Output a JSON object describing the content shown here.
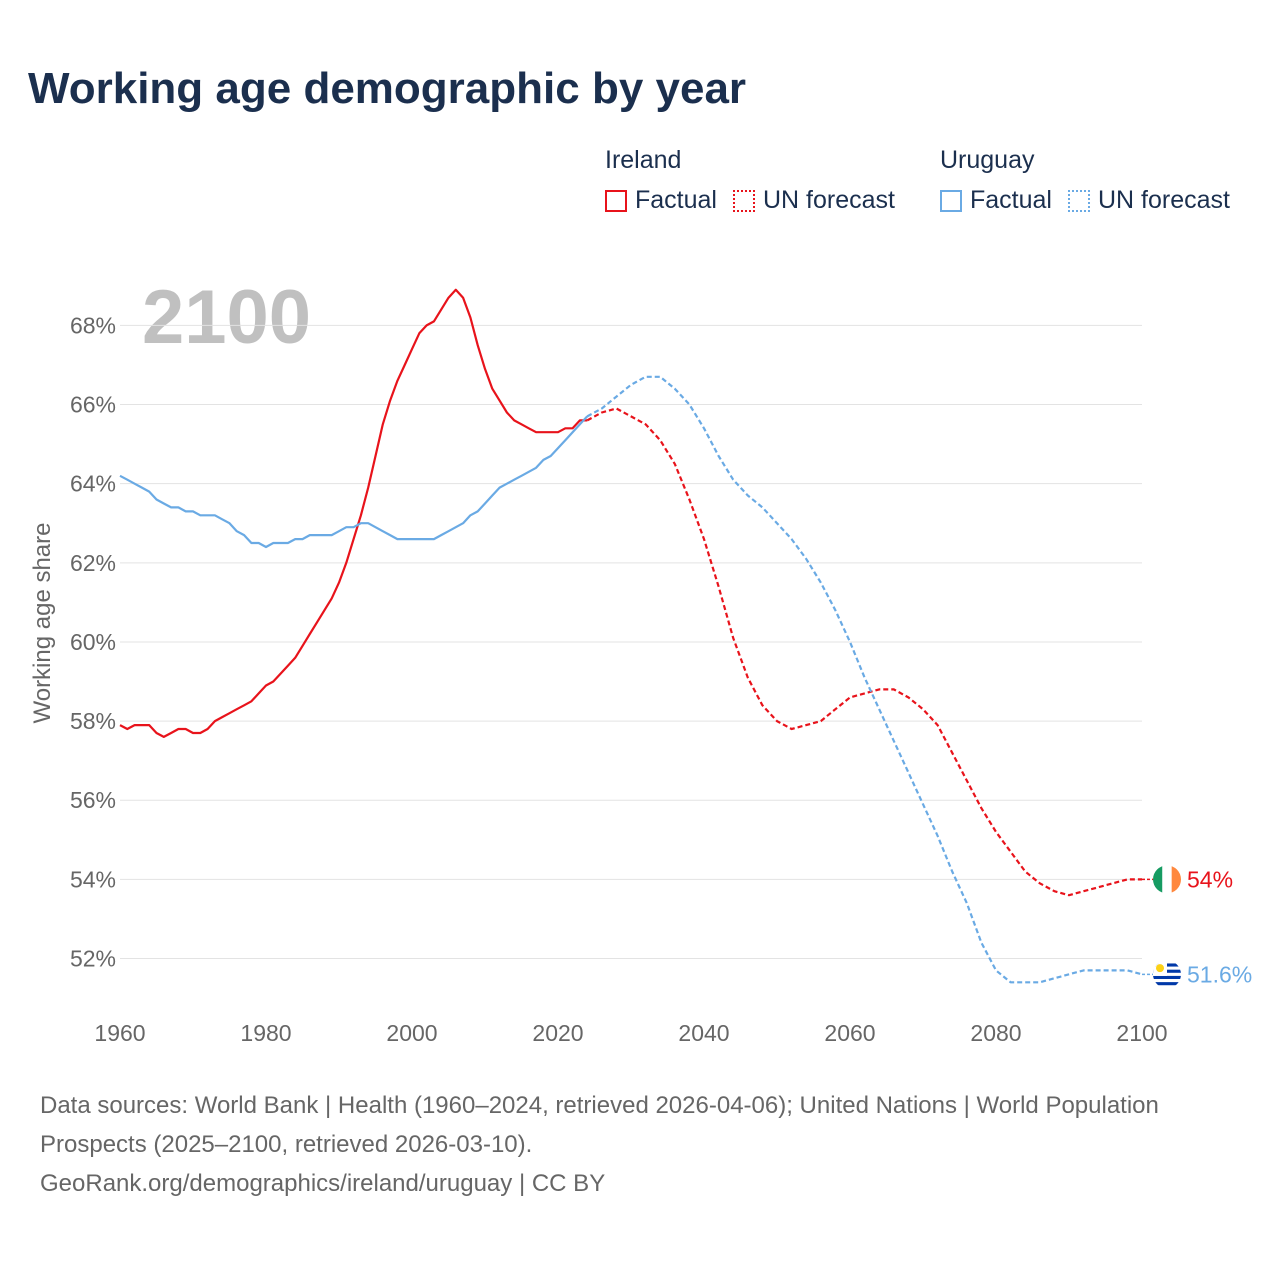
{
  "title": "Working age demographic by year",
  "legend": {
    "groups": [
      {
        "name": "Ireland",
        "factual_label": "Factual",
        "forecast_label": "UN forecast",
        "color": "#e8131b"
      },
      {
        "name": "Uruguay",
        "factual_label": "Factual",
        "forecast_label": "UN forecast",
        "color": "#6aaae4"
      }
    ]
  },
  "chart_data": {
    "type": "line",
    "title": "Working age demographic by year",
    "xlabel": "",
    "ylabel": "Working age share",
    "xlim": [
      1960,
      2100
    ],
    "ylim": [
      50.8,
      69.4
    ],
    "year_label": "2100",
    "x_ticks": [
      1960,
      1980,
      2000,
      2020,
      2040,
      2060,
      2080,
      2100
    ],
    "y_ticks": [
      52,
      54,
      56,
      58,
      60,
      62,
      64,
      66,
      68
    ],
    "y_tick_labels": [
      "52%",
      "54%",
      "56%",
      "58%",
      "60%",
      "62%",
      "64%",
      "66%",
      "68%"
    ],
    "grid": true,
    "factual_end_year": 2024,
    "series": [
      {
        "name": "Ireland",
        "color": "#e8131b",
        "end_label": "54%",
        "flag": "ireland-flag",
        "x": [
          1960,
          1961,
          1962,
          1963,
          1964,
          1965,
          1966,
          1967,
          1968,
          1969,
          1970,
          1971,
          1972,
          1973,
          1974,
          1975,
          1976,
          1977,
          1978,
          1979,
          1980,
          1981,
          1982,
          1983,
          1984,
          1985,
          1986,
          1987,
          1988,
          1989,
          1990,
          1991,
          1992,
          1993,
          1994,
          1995,
          1996,
          1997,
          1998,
          1999,
          2000,
          2001,
          2002,
          2003,
          2004,
          2005,
          2006,
          2007,
          2008,
          2009,
          2010,
          2011,
          2012,
          2013,
          2014,
          2015,
          2016,
          2017,
          2018,
          2019,
          2020,
          2021,
          2022,
          2023,
          2024,
          2026,
          2028,
          2030,
          2032,
          2034,
          2036,
          2038,
          2040,
          2042,
          2044,
          2046,
          2048,
          2050,
          2052,
          2054,
          2056,
          2058,
          2060,
          2062,
          2064,
          2066,
          2068,
          2070,
          2072,
          2074,
          2076,
          2078,
          2080,
          2082,
          2084,
          2086,
          2088,
          2090,
          2092,
          2094,
          2096,
          2098,
          2100
        ],
        "values": [
          57.9,
          57.8,
          57.9,
          57.9,
          57.9,
          57.7,
          57.6,
          57.7,
          57.8,
          57.8,
          57.7,
          57.7,
          57.8,
          58.0,
          58.1,
          58.2,
          58.3,
          58.4,
          58.5,
          58.7,
          58.9,
          59.0,
          59.2,
          59.4,
          59.6,
          59.9,
          60.2,
          60.5,
          60.8,
          61.1,
          61.5,
          62.0,
          62.6,
          63.2,
          63.9,
          64.7,
          65.5,
          66.1,
          66.6,
          67.0,
          67.4,
          67.8,
          68.0,
          68.1,
          68.4,
          68.7,
          68.9,
          68.7,
          68.2,
          67.5,
          66.9,
          66.4,
          66.1,
          65.8,
          65.6,
          65.5,
          65.4,
          65.3,
          65.3,
          65.3,
          65.3,
          65.4,
          65.4,
          65.6,
          65.6,
          65.8,
          65.9,
          65.7,
          65.5,
          65.1,
          64.5,
          63.6,
          62.6,
          61.4,
          60.1,
          59.1,
          58.4,
          58.0,
          57.8,
          57.9,
          58.0,
          58.3,
          58.6,
          58.7,
          58.8,
          58.8,
          58.6,
          58.3,
          57.9,
          57.2,
          56.5,
          55.8,
          55.2,
          54.7,
          54.2,
          53.9,
          53.7,
          53.6,
          53.7,
          53.8,
          53.9,
          54.0,
          54.0
        ]
      },
      {
        "name": "Uruguay",
        "color": "#6aaae4",
        "end_label": "51.6%",
        "flag": "uruguay-flag",
        "x": [
          1960,
          1961,
          1962,
          1963,
          1964,
          1965,
          1966,
          1967,
          1968,
          1969,
          1970,
          1971,
          1972,
          1973,
          1974,
          1975,
          1976,
          1977,
          1978,
          1979,
          1980,
          1981,
          1982,
          1983,
          1984,
          1985,
          1986,
          1987,
          1988,
          1989,
          1990,
          1991,
          1992,
          1993,
          1994,
          1995,
          1996,
          1997,
          1998,
          1999,
          2000,
          2001,
          2002,
          2003,
          2004,
          2005,
          2006,
          2007,
          2008,
          2009,
          2010,
          2011,
          2012,
          2013,
          2014,
          2015,
          2016,
          2017,
          2018,
          2019,
          2020,
          2021,
          2022,
          2023,
          2024,
          2026,
          2028,
          2030,
          2032,
          2034,
          2036,
          2038,
          2040,
          2042,
          2044,
          2046,
          2048,
          2050,
          2052,
          2054,
          2056,
          2058,
          2060,
          2062,
          2064,
          2066,
          2068,
          2070,
          2072,
          2074,
          2076,
          2078,
          2080,
          2082,
          2084,
          2086,
          2088,
          2090,
          2092,
          2094,
          2096,
          2098,
          2100
        ],
        "values": [
          64.2,
          64.1,
          64.0,
          63.9,
          63.8,
          63.6,
          63.5,
          63.4,
          63.4,
          63.3,
          63.3,
          63.2,
          63.2,
          63.2,
          63.1,
          63.0,
          62.8,
          62.7,
          62.5,
          62.5,
          62.4,
          62.5,
          62.5,
          62.5,
          62.6,
          62.6,
          62.7,
          62.7,
          62.7,
          62.7,
          62.8,
          62.9,
          62.9,
          63.0,
          63.0,
          62.9,
          62.8,
          62.7,
          62.6,
          62.6,
          62.6,
          62.6,
          62.6,
          62.6,
          62.7,
          62.8,
          62.9,
          63.0,
          63.2,
          63.3,
          63.5,
          63.7,
          63.9,
          64.0,
          64.1,
          64.2,
          64.3,
          64.4,
          64.6,
          64.7,
          64.9,
          65.1,
          65.3,
          65.5,
          65.7,
          65.9,
          66.2,
          66.5,
          66.7,
          66.7,
          66.4,
          66.0,
          65.4,
          64.7,
          64.1,
          63.7,
          63.4,
          63.0,
          62.6,
          62.1,
          61.5,
          60.8,
          60.0,
          59.1,
          58.3,
          57.5,
          56.7,
          55.9,
          55.1,
          54.2,
          53.4,
          52.4,
          51.7,
          51.4,
          51.4,
          51.4,
          51.5,
          51.6,
          51.7,
          51.7,
          51.7,
          51.7,
          51.6
        ]
      }
    ]
  },
  "footer": {
    "sources": "Data sources: World Bank | Health (1960–2024, retrieved 2026-04-06); United Nations | World Population Prospects (2025–2100, retrieved 2026-03-10).",
    "credit": "GeoRank.org/demographics/ireland/uruguay | CC BY"
  }
}
